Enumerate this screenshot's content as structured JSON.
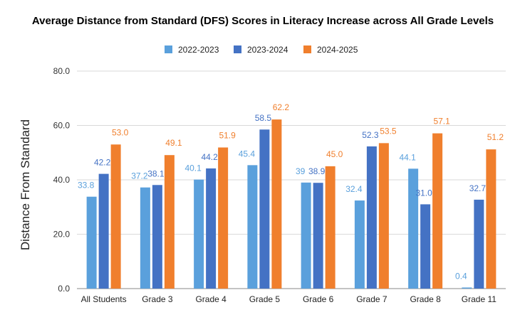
{
  "chart_data": {
    "type": "bar",
    "title": "Average Distance from Standard (DFS) Scores in Literacy Increase across All Grade Levels",
    "xlabel": "",
    "ylabel": "Distance From Standard",
    "ylim": [
      0,
      80
    ],
    "yticks": [
      0,
      20,
      40,
      60,
      80
    ],
    "ytick_labels": [
      "0.0",
      "20.0",
      "40.0",
      "60.0",
      "80.0"
    ],
    "grid": true,
    "legend_position": "top-center",
    "categories": [
      "All Students",
      "Grade 3",
      "Grade 4",
      "Grade 5",
      "Grade 6",
      "Grade 7",
      "Grade 8",
      "Grade 11"
    ],
    "series": [
      {
        "name": "2022-2023",
        "color": "#5aa0dc",
        "values": [
          33.8,
          37.2,
          40.1,
          45.4,
          39,
          32.4,
          44.1,
          0.4
        ],
        "labels": [
          "33.8",
          "37.2",
          "40.1",
          "45.4",
          "39",
          "32.4",
          "44.1",
          "0.4"
        ]
      },
      {
        "name": "2023-2024",
        "color": "#4472c4",
        "values": [
          42.2,
          38.1,
          44.2,
          58.5,
          38.9,
          52.3,
          31.0,
          32.7
        ],
        "labels": [
          "42.2",
          "38.1",
          "44.2",
          "58.5",
          "38.9",
          "52.3",
          "31.0",
          "32.7"
        ]
      },
      {
        "name": "2024-2025",
        "color": "#f07f2d",
        "values": [
          53.0,
          49.1,
          51.9,
          62.2,
          45.0,
          53.5,
          57.1,
          51.2
        ],
        "labels": [
          "53.0",
          "49.1",
          "51.9",
          "62.2",
          "45.0",
          "53.5",
          "57.1",
          "51.2"
        ]
      }
    ]
  },
  "colors": {
    "grid": "#d9d9d9",
    "axis": "#888888",
    "text": "#222222"
  }
}
